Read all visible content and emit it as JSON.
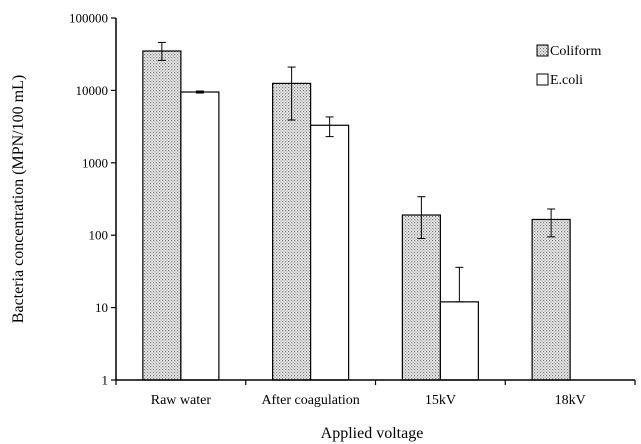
{
  "chart_data": {
    "type": "bar",
    "title": "",
    "xlabel": "Applied voltage",
    "ylabel": "Bacteria concentration (MPN/100 mL)",
    "y_scale": "log10",
    "ylim": [
      1,
      100000
    ],
    "y_ticks": [
      "1",
      "10",
      "100",
      "1000",
      "10000",
      "100000"
    ],
    "categories": [
      "Raw water",
      "After coagulation",
      "15kV",
      "18kV"
    ],
    "legend_position": "top-right",
    "grid": false,
    "series": [
      {
        "name": "Coliform",
        "pattern": "dotted",
        "values": [
          35000,
          12500,
          190,
          165
        ],
        "error_low": [
          26000,
          3900,
          90,
          95
        ],
        "error_high": [
          46000,
          21000,
          340,
          230
        ]
      },
      {
        "name": "E.coli",
        "pattern": "solid-white",
        "values": [
          9500,
          3300,
          12,
          null
        ],
        "error_low": [
          9200,
          2300,
          12,
          null
        ],
        "error_high": [
          9800,
          4300,
          36,
          null
        ]
      }
    ]
  }
}
